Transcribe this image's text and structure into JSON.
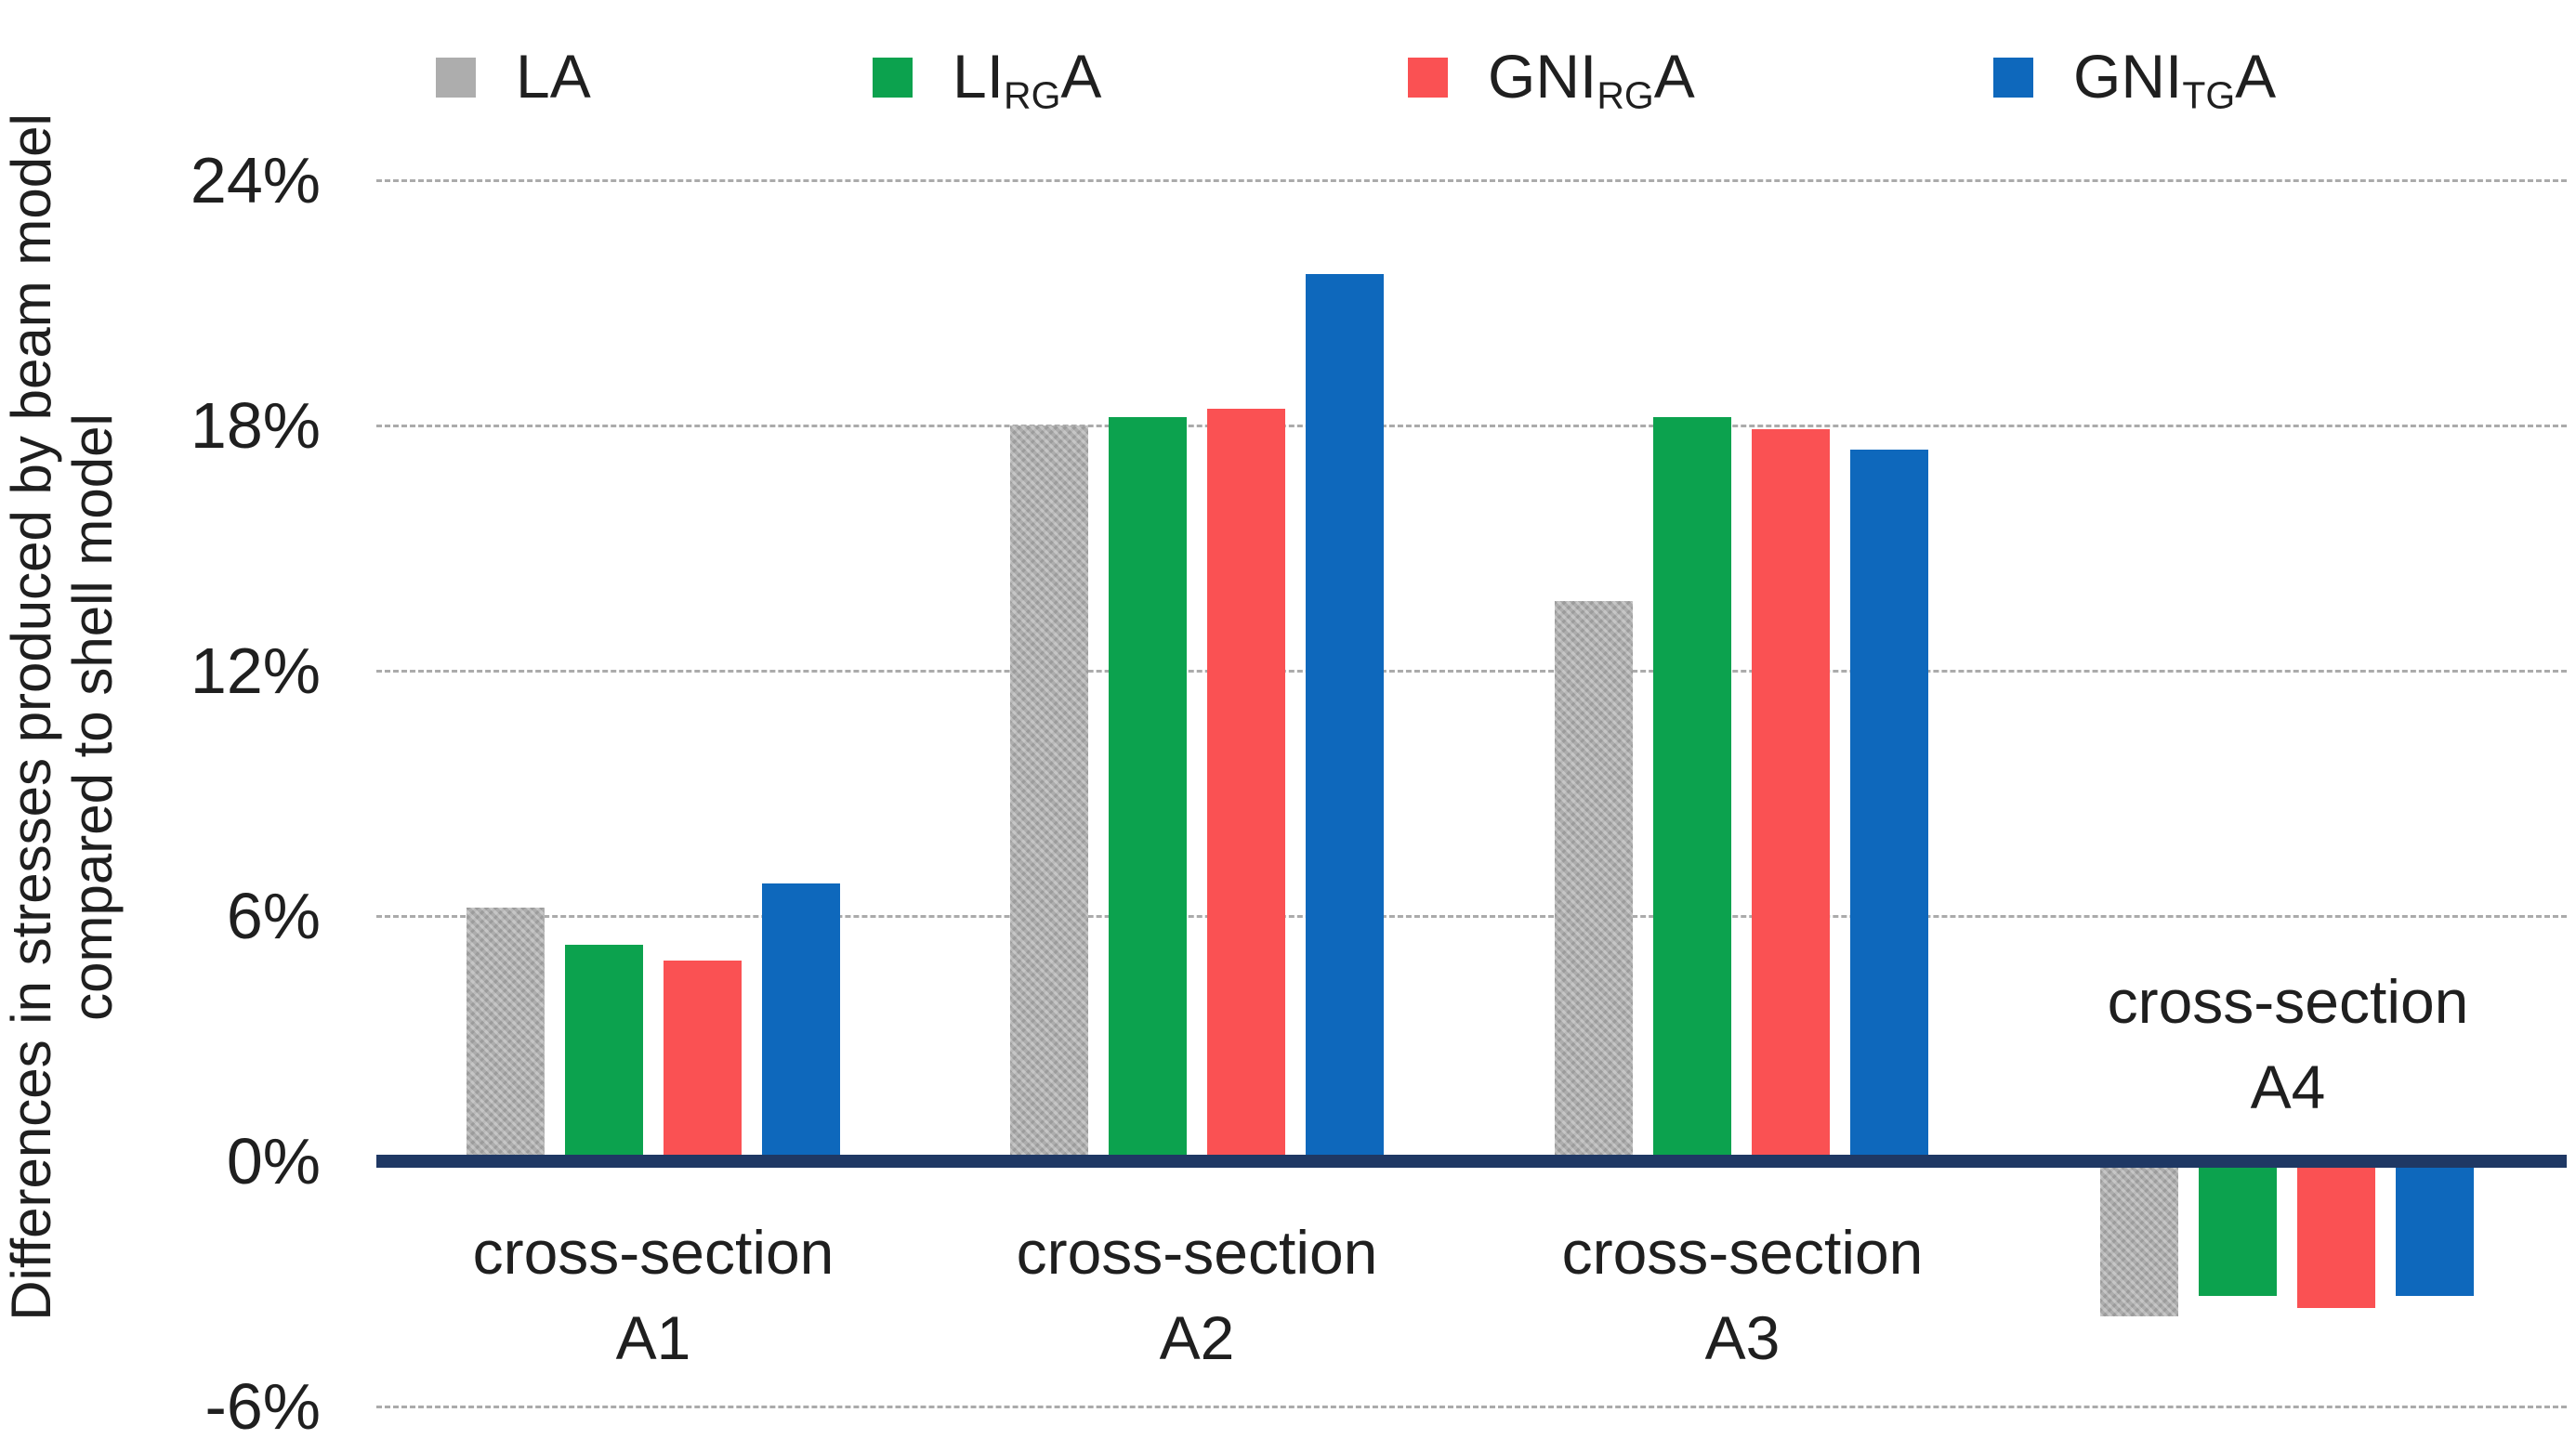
{
  "chart_data": {
    "type": "bar",
    "title": "",
    "ylabel_lines": [
      "Differences in stresses produced by beam model",
      "compared to shell model"
    ],
    "xlabel": "",
    "categories": [
      {
        "line1": "cross-section",
        "line2": "A1"
      },
      {
        "line1": "cross-section",
        "line2": "A2"
      },
      {
        "line1": "cross-section",
        "line2": "A3"
      },
      {
        "line1": "cross-section",
        "line2": "A4"
      }
    ],
    "series": [
      {
        "name": "LA",
        "label": {
          "main": "LA",
          "sub": "",
          "tail": ""
        },
        "color": "#ADADAD",
        "pattern": true,
        "values": [
          6.2,
          18.0,
          13.7,
          -3.8
        ]
      },
      {
        "name": "LIRGA",
        "label": {
          "main": "LI",
          "sub": "RG",
          "tail": "A"
        },
        "color": "#0CA24E",
        "pattern": false,
        "values": [
          5.3,
          18.2,
          18.2,
          -3.3
        ]
      },
      {
        "name": "GNIRGA",
        "label": {
          "main": "GNI",
          "sub": "RG",
          "tail": "A"
        },
        "color": "#FA5153",
        "pattern": false,
        "values": [
          4.9,
          18.4,
          17.9,
          -3.6
        ]
      },
      {
        "name": "GNITGA",
        "label": {
          "main": "GNI",
          "sub": "TG",
          "tail": "A"
        },
        "color": "#0E68BC",
        "pattern": false,
        "values": [
          6.8,
          21.7,
          17.4,
          -3.3
        ]
      }
    ],
    "yticks": [
      {
        "label": "24%",
        "value": 24
      },
      {
        "label": "18%",
        "value": 18
      },
      {
        "label": "12%",
        "value": 12
      },
      {
        "label": "6%",
        "value": 6
      },
      {
        "label": "0%",
        "value": 0
      },
      {
        "label": "-6%",
        "value": -6
      }
    ],
    "ylim": [
      -6,
      24
    ],
    "grid": true,
    "legend_position": "top",
    "axis_color": "#1F3864",
    "gridline_color": "#ABABAB",
    "text_color": "#1F1F1F",
    "background": "#FFFFFF"
  }
}
